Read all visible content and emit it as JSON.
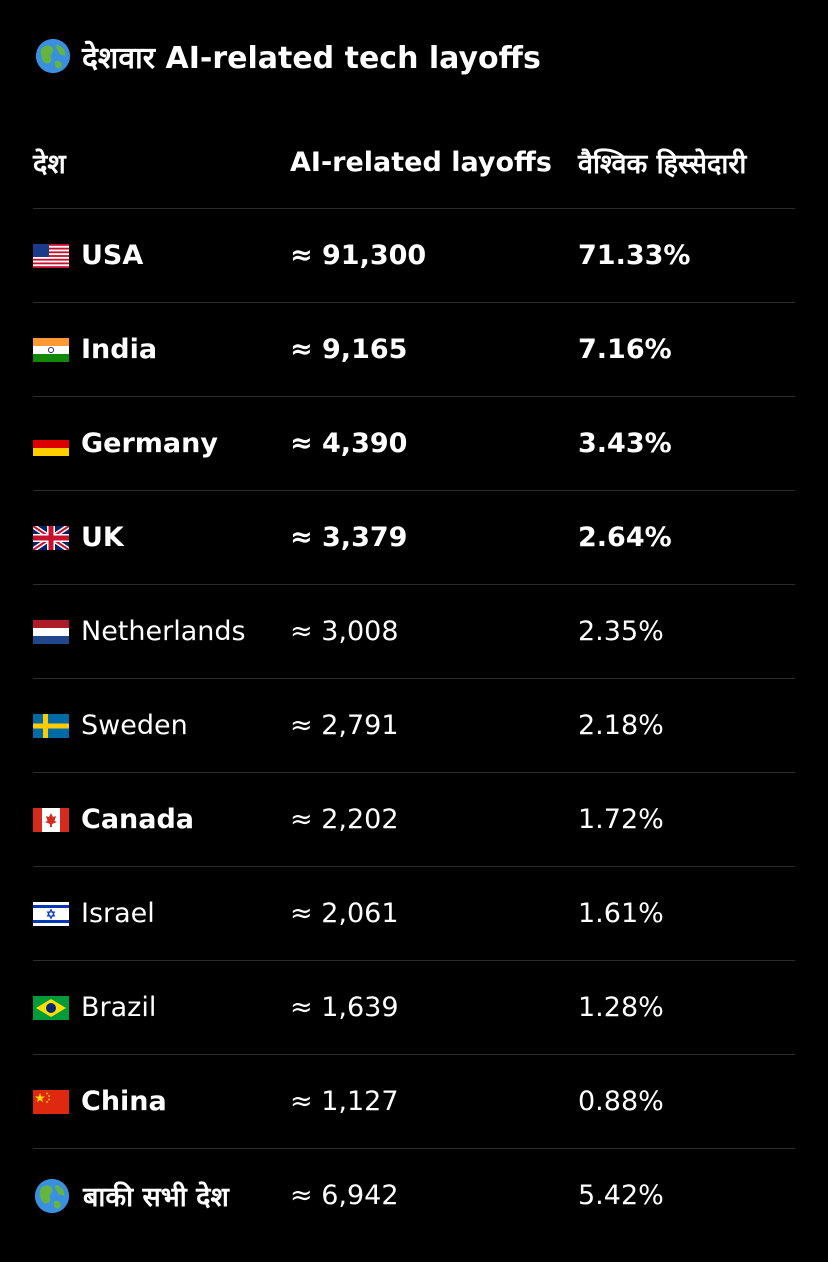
{
  "title": {
    "icon": "globe-icon",
    "text": "देशवार AI-related tech layoffs"
  },
  "table": {
    "headers": {
      "country": "देश",
      "layoffs": "AI-related layoffs",
      "share": "वैश्विक हिस्सेदारी"
    },
    "rows": [
      {
        "flag": "flag-usa-icon",
        "country": "USA",
        "layoffs": "≈ 91,300",
        "share": "71.33%",
        "bold": true
      },
      {
        "flag": "flag-india-icon",
        "country": "India",
        "layoffs": "≈ 9,165",
        "share": "7.16%",
        "bold": true
      },
      {
        "flag": "flag-germany-icon",
        "country": "Germany",
        "layoffs": "≈ 4,390",
        "share": "3.43%",
        "bold": true
      },
      {
        "flag": "flag-uk-icon",
        "country": "UK",
        "layoffs": "≈ 3,379",
        "share": "2.64%",
        "bold": true
      },
      {
        "flag": "flag-netherlands-icon",
        "country": "Netherlands",
        "layoffs": "≈ 3,008",
        "share": "2.35%",
        "bold": false
      },
      {
        "flag": "flag-sweden-icon",
        "country": "Sweden",
        "layoffs": "≈ 2,791",
        "share": "2.18%",
        "bold": false
      },
      {
        "flag": "flag-canada-icon",
        "country": "Canada",
        "layoffs": "≈ 2,202",
        "share": "1.72%",
        "bold": false
      },
      {
        "flag": "flag-israel-icon",
        "country": "Israel",
        "layoffs": "≈ 2,061",
        "share": "1.61%",
        "bold": false
      },
      {
        "flag": "flag-brazil-icon",
        "country": "Brazil",
        "layoffs": "≈ 1,639",
        "share": "1.28%",
        "bold": false
      },
      {
        "flag": "flag-china-icon",
        "country": "China",
        "layoffs": "≈ 1,127",
        "share": "0.88%",
        "bold": false
      },
      {
        "flag": "globe-icon",
        "country": "बाकी सभी देश",
        "layoffs": "≈ 6,942",
        "share": "5.42%",
        "bold": false
      }
    ]
  },
  "colors": {
    "background": "#000000",
    "text": "#ffffff",
    "divider": "#2c2c2e"
  }
}
